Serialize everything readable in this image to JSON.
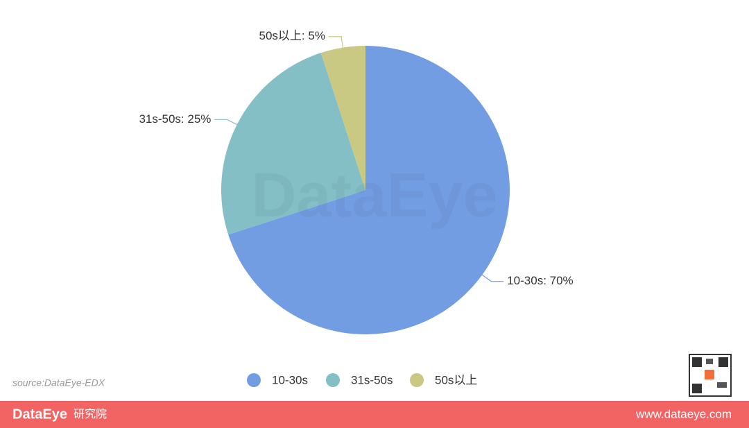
{
  "chart_data": {
    "type": "pie",
    "categories": [
      "10-30s",
      "31s-50s",
      "50s以上"
    ],
    "values": [
      70,
      25,
      5
    ],
    "value_labels": [
      "10-30s: 70%",
      "31s-50s: 25%",
      "50s以上: 5%"
    ],
    "colors": [
      "#739de3",
      "#84bfc6",
      "#c9c983"
    ],
    "legend": "bottom"
  },
  "watermark": "DataEye",
  "source": "source:DataEye-EDX",
  "footer": {
    "brand": "DataEye",
    "brand_suffix": "研究院",
    "url": "www.dataeye.com"
  }
}
